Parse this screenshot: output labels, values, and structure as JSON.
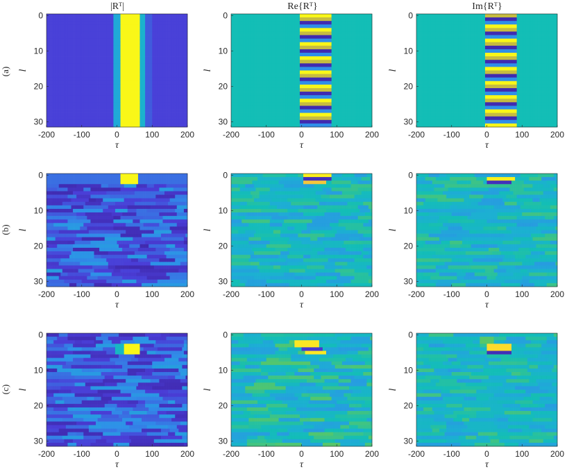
{
  "figure": {
    "row_labels": [
      "(a)",
      "(b)",
      "(c)"
    ],
    "column_titles": [
      "|Rᵀ|",
      "Re{Rᵀ}",
      "Im{Rᵀ}"
    ],
    "colormap": [
      "#3e26a8",
      "#4a3ed7",
      "#2f8fe9",
      "#1cafd3",
      "#13beb6",
      "#5ac766",
      "#c6bc40",
      "#fec93b",
      "#f9fb15"
    ]
  },
  "chart_data": [
    {
      "type": "heatmap",
      "panel": "a-abs",
      "row": "(a)",
      "title": "|Rᵀ|",
      "xlabel": "τ",
      "ylabel": "l",
      "xlim": [
        -200,
        200
      ],
      "ylim": [
        31,
        0
      ],
      "xticks": [
        -200,
        -100,
        0,
        100,
        200
      ],
      "yticks": [
        0,
        10,
        20,
        30
      ],
      "background": 0.13,
      "bands": [
        {
          "x0": -10,
          "x1": 10,
          "value": 0.35,
          "rows": "all"
        },
        {
          "x0": 10,
          "x1": 65,
          "value": 0.99,
          "rows": "all"
        },
        {
          "x0": 65,
          "x1": 80,
          "value": 0.4,
          "rows": "all"
        },
        {
          "x0": 80,
          "x1": 100,
          "value": 0.17,
          "rows": "all"
        }
      ]
    },
    {
      "type": "heatmap",
      "panel": "a-re",
      "row": "(a)",
      "title": "Re{Rᵀ}",
      "xlabel": "τ",
      "ylabel": "l",
      "xlim": [
        -200,
        200
      ],
      "ylim": [
        31,
        0
      ],
      "xticks": [
        -200,
        -100,
        0,
        100,
        200
      ],
      "yticks": [
        0,
        10,
        20,
        30
      ],
      "background": 0.5,
      "stripes": {
        "x0": -5,
        "x1": 85,
        "phase": 0,
        "amplitude": 0.5
      }
    },
    {
      "type": "heatmap",
      "panel": "a-im",
      "row": "(a)",
      "title": "Im{Rᵀ}",
      "xlabel": "τ",
      "ylabel": "l",
      "xlim": [
        -200,
        200
      ],
      "ylim": [
        31,
        0
      ],
      "xticks": [
        -200,
        -100,
        0,
        100,
        200
      ],
      "yticks": [
        0,
        10,
        20,
        30
      ],
      "background": 0.5,
      "stripes": {
        "x0": -5,
        "x1": 85,
        "phase": 1,
        "amplitude": 0.5
      }
    },
    {
      "type": "heatmap",
      "panel": "b-abs",
      "row": "(b)",
      "title": "",
      "xlabel": "τ",
      "ylabel": "l",
      "xlim": [
        -200,
        200
      ],
      "ylim": [
        31,
        0
      ],
      "xticks": [
        -200,
        -100,
        0,
        100,
        200
      ],
      "yticks": [
        0,
        10,
        20,
        30
      ],
      "noise": {
        "seed": 11,
        "base": 0.16,
        "spread": 0.14
      },
      "blobs": [
        {
          "l0": -0.5,
          "l1": 2.5,
          "x0": 10,
          "x1": 60,
          "value": 0.99
        },
        {
          "l0": -0.5,
          "l1": 2.5,
          "x0": -200,
          "x1": 10,
          "value": 0.2
        },
        {
          "l0": -0.5,
          "l1": 2.5,
          "x0": 60,
          "x1": 200,
          "value": 0.2
        }
      ]
    },
    {
      "type": "heatmap",
      "panel": "b-re",
      "row": "(b)",
      "title": "",
      "xlabel": "τ",
      "ylabel": "l",
      "xlim": [
        -200,
        200
      ],
      "ylim": [
        31,
        0
      ],
      "xticks": [
        -200,
        -100,
        0,
        100,
        200
      ],
      "yticks": [
        0,
        10,
        20,
        30
      ],
      "noise": {
        "seed": 23,
        "base": 0.44,
        "spread": 0.14
      },
      "blobs": [
        {
          "l0": -0.5,
          "l1": 0.8,
          "x0": 5,
          "x1": 85,
          "value": 0.97
        },
        {
          "l0": 0.8,
          "l1": 2,
          "x0": 5,
          "x1": 85,
          "value": 0.05
        },
        {
          "l0": 2,
          "l1": 3,
          "x0": 5,
          "x1": 70,
          "value": 0.85
        }
      ]
    },
    {
      "type": "heatmap",
      "panel": "b-im",
      "row": "(b)",
      "title": "",
      "xlabel": "τ",
      "ylabel": "l",
      "xlim": [
        -200,
        200
      ],
      "ylim": [
        31,
        0
      ],
      "xticks": [
        -200,
        -100,
        0,
        100,
        200
      ],
      "yticks": [
        0,
        10,
        20,
        30
      ],
      "noise": {
        "seed": 37,
        "base": 0.44,
        "spread": 0.14
      },
      "blobs": [
        {
          "l0": 0.3,
          "l1": 1.6,
          "x0": 0,
          "x1": 80,
          "value": 0.97
        },
        {
          "l0": 1.6,
          "l1": 2.8,
          "x0": 0,
          "x1": 70,
          "value": 0.05
        }
      ]
    },
    {
      "type": "heatmap",
      "panel": "c-abs",
      "row": "(c)",
      "title": "",
      "xlabel": "τ",
      "ylabel": "l",
      "xlim": [
        -200,
        200
      ],
      "ylim": [
        31,
        0
      ],
      "xticks": [
        -200,
        -100,
        0,
        100,
        200
      ],
      "yticks": [
        0,
        10,
        20,
        30
      ],
      "noise": {
        "seed": 53,
        "base": 0.17,
        "spread": 0.14
      },
      "blobs": [
        {
          "l0": 3,
          "l1": 6,
          "x0": 20,
          "x1": 65,
          "value": 0.99
        },
        {
          "l0": 3,
          "l1": 6,
          "x0": -5,
          "x1": 20,
          "value": 0.45
        }
      ]
    },
    {
      "type": "heatmap",
      "panel": "c-re",
      "row": "(c)",
      "title": "",
      "xlabel": "τ",
      "ylabel": "l",
      "xlim": [
        -200,
        200
      ],
      "ylim": [
        31,
        0
      ],
      "xticks": [
        -200,
        -100,
        0,
        100,
        200
      ],
      "yticks": [
        0,
        10,
        20,
        30
      ],
      "noise": {
        "seed": 71,
        "base": 0.46,
        "spread": 0.16
      },
      "blobs": [
        {
          "l0": 1.5,
          "l1": 3.2,
          "x0": -20,
          "x1": 50,
          "value": 0.95
        },
        {
          "l0": 3.2,
          "l1": 4.5,
          "x0": 0,
          "x1": 60,
          "value": 0.1
        },
        {
          "l0": 4.5,
          "l1": 5.8,
          "x0": 10,
          "x1": 70,
          "value": 0.95
        }
      ]
    },
    {
      "type": "heatmap",
      "panel": "c-im",
      "row": "(c)",
      "title": "",
      "xlabel": "τ",
      "ylabel": "l",
      "xlim": [
        -200,
        200
      ],
      "ylim": [
        31,
        0
      ],
      "xticks": [
        -200,
        -100,
        0,
        100,
        200
      ],
      "yticks": [
        0,
        10,
        20,
        30
      ],
      "noise": {
        "seed": 89,
        "base": 0.44,
        "spread": 0.14
      },
      "blobs": [
        {
          "l0": 3,
          "l1": 4.3,
          "x0": 0,
          "x1": 70,
          "value": 0.92
        },
        {
          "l0": 4.3,
          "l1": 5.6,
          "x0": 0,
          "x1": 70,
          "value": 0.04
        },
        {
          "l0": 1,
          "l1": 2.2,
          "x0": -20,
          "x1": 20,
          "value": 0.62
        }
      ]
    }
  ]
}
